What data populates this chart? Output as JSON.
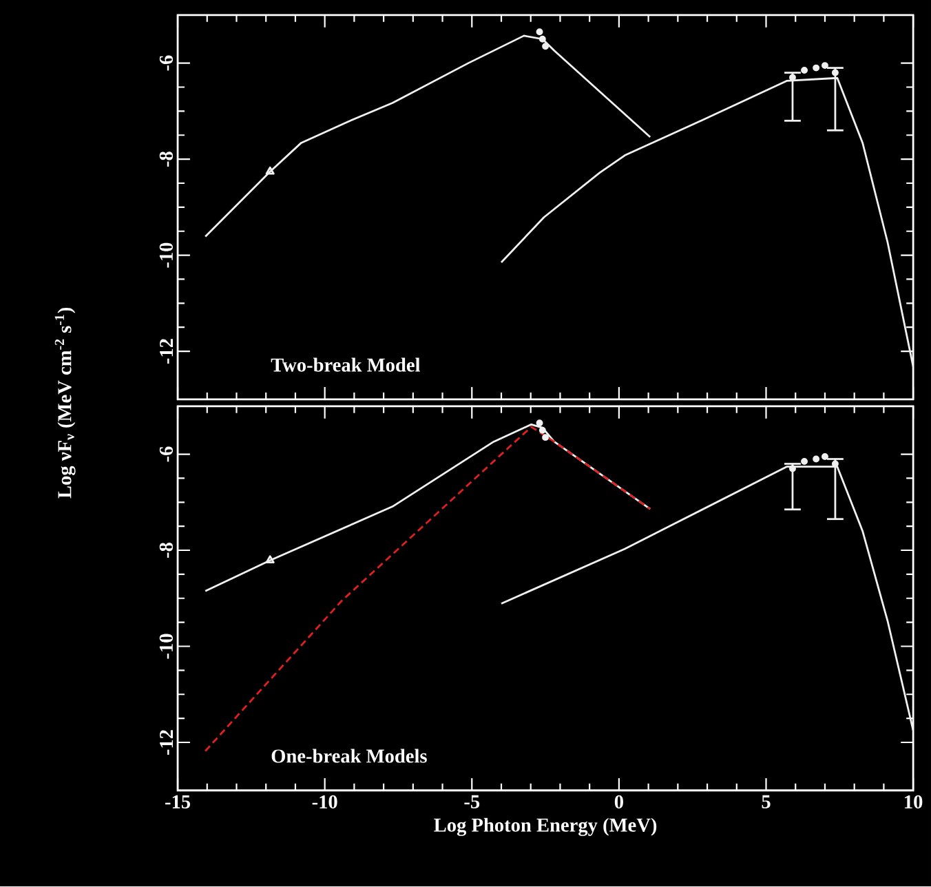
{
  "chart_data": [
    {
      "type": "line",
      "xlim": [
        -15,
        10
      ],
      "ylim": [
        -13,
        -5
      ],
      "xticks": [
        -15,
        -10,
        -5,
        0,
        5,
        10
      ],
      "yticks": [
        -12,
        -10,
        -8,
        -6
      ],
      "tick_labels": "y",
      "ylabel": "Log νF$_{ν}$ (MeV cm$^{-2}$ s$^{-1}$)",
      "annotations": [
        "Two-break Model"
      ],
      "series": [
        {
          "color": "#f0f0f0",
          "marker": "none",
          "line_style": "solid",
          "x": [
            -14.06,
            -11.86,
            -10.8,
            -9.25,
            -7.7,
            -5.12,
            -3.23,
            -2.6,
            -2.2,
            1.06
          ],
          "values": [
            -9.61,
            -8.26,
            -7.66,
            -7.23,
            -6.83,
            -6.0,
            -5.43,
            -5.5,
            -5.74,
            -7.54
          ]
        },
        {
          "color": "#f0f0f0",
          "marker": "none",
          "line_style": "solid",
          "x": [
            -4.0,
            -2.55,
            -0.65,
            0.2,
            2.61,
            5.7,
            7.42,
            8.28,
            9.13,
            10.0
          ],
          "values": [
            -10.15,
            -9.21,
            -8.28,
            -7.92,
            -7.25,
            -6.37,
            -6.31,
            -7.66,
            -9.73,
            -12.32
          ]
        },
        {
          "type": "scatter",
          "color": "#f0f0f0",
          "marker": "triangle",
          "x": [
            -11.86
          ],
          "values": [
            -8.26
          ]
        },
        {
          "type": "scatter",
          "color": "#f0f0f0",
          "marker": "circle",
          "x": [
            -2.7,
            -2.6,
            -2.5,
            6.3,
            6.7,
            7.0
          ],
          "values": [
            -5.35,
            -5.5,
            -5.65,
            -6.15,
            -6.1,
            -6.05
          ]
        },
        {
          "type": "scatter",
          "color": "#f0f0f0",
          "marker": "circle",
          "x": [
            5.9,
            7.35
          ],
          "values": [
            -6.3,
            -6.2
          ],
          "errors": [
            [
              -7.2,
              -6.2
            ],
            [
              -7.4,
              -6.1
            ]
          ]
        }
      ]
    },
    {
      "type": "line",
      "xlim": [
        -15,
        10
      ],
      "ylim": [
        -13,
        -5
      ],
      "xticks": [
        -15,
        -10,
        -5,
        0,
        5,
        10
      ],
      "yticks": [
        -12,
        -10,
        -8,
        -6
      ],
      "xlabel": "Log Photon Energy (MeV)",
      "annotations": [
        "One-break Models"
      ],
      "series": [
        {
          "color": "#f0f0f0",
          "marker": "none",
          "line_style": "solid",
          "x": [
            -14.06,
            -11.86,
            -7.7,
            -4.26,
            -2.98,
            -2.6,
            -2.2,
            1.06
          ],
          "values": [
            -8.85,
            -8.21,
            -7.09,
            -5.74,
            -5.38,
            -5.45,
            -5.74,
            -7.14
          ]
        },
        {
          "color": "#e02020",
          "marker": "none",
          "line_style": "dashed",
          "x": [
            -14.06,
            -9.42,
            -2.98,
            -2.2,
            1.06
          ],
          "values": [
            -12.18,
            -9.05,
            -5.43,
            -5.74,
            -7.14
          ]
        },
        {
          "color": "#f0f0f0",
          "marker": "none",
          "line_style": "solid",
          "x": [
            -4.0,
            0.2,
            5.7,
            7.42,
            8.28,
            9.13,
            10.0
          ],
          "values": [
            -9.11,
            -7.97,
            -6.26,
            -6.26,
            -7.6,
            -9.47,
            -11.75
          ]
        },
        {
          "type": "scatter",
          "color": "#f0f0f0",
          "marker": "triangle",
          "x": [
            -11.86
          ],
          "values": [
            -8.21
          ]
        },
        {
          "type": "scatter",
          "color": "#f0f0f0",
          "marker": "circle",
          "x": [
            -2.7,
            -2.6,
            -2.5,
            6.3,
            6.7,
            7.0
          ],
          "values": [
            -5.35,
            -5.5,
            -5.65,
            -6.15,
            -6.1,
            -6.05
          ]
        },
        {
          "type": "scatter",
          "color": "#f0f0f0",
          "marker": "circle",
          "x": [
            5.9,
            7.35
          ],
          "values": [
            -6.3,
            -6.2
          ],
          "errors": [
            [
              -7.15,
              -6.2
            ],
            [
              -7.35,
              -6.1
            ]
          ]
        }
      ]
    }
  ]
}
